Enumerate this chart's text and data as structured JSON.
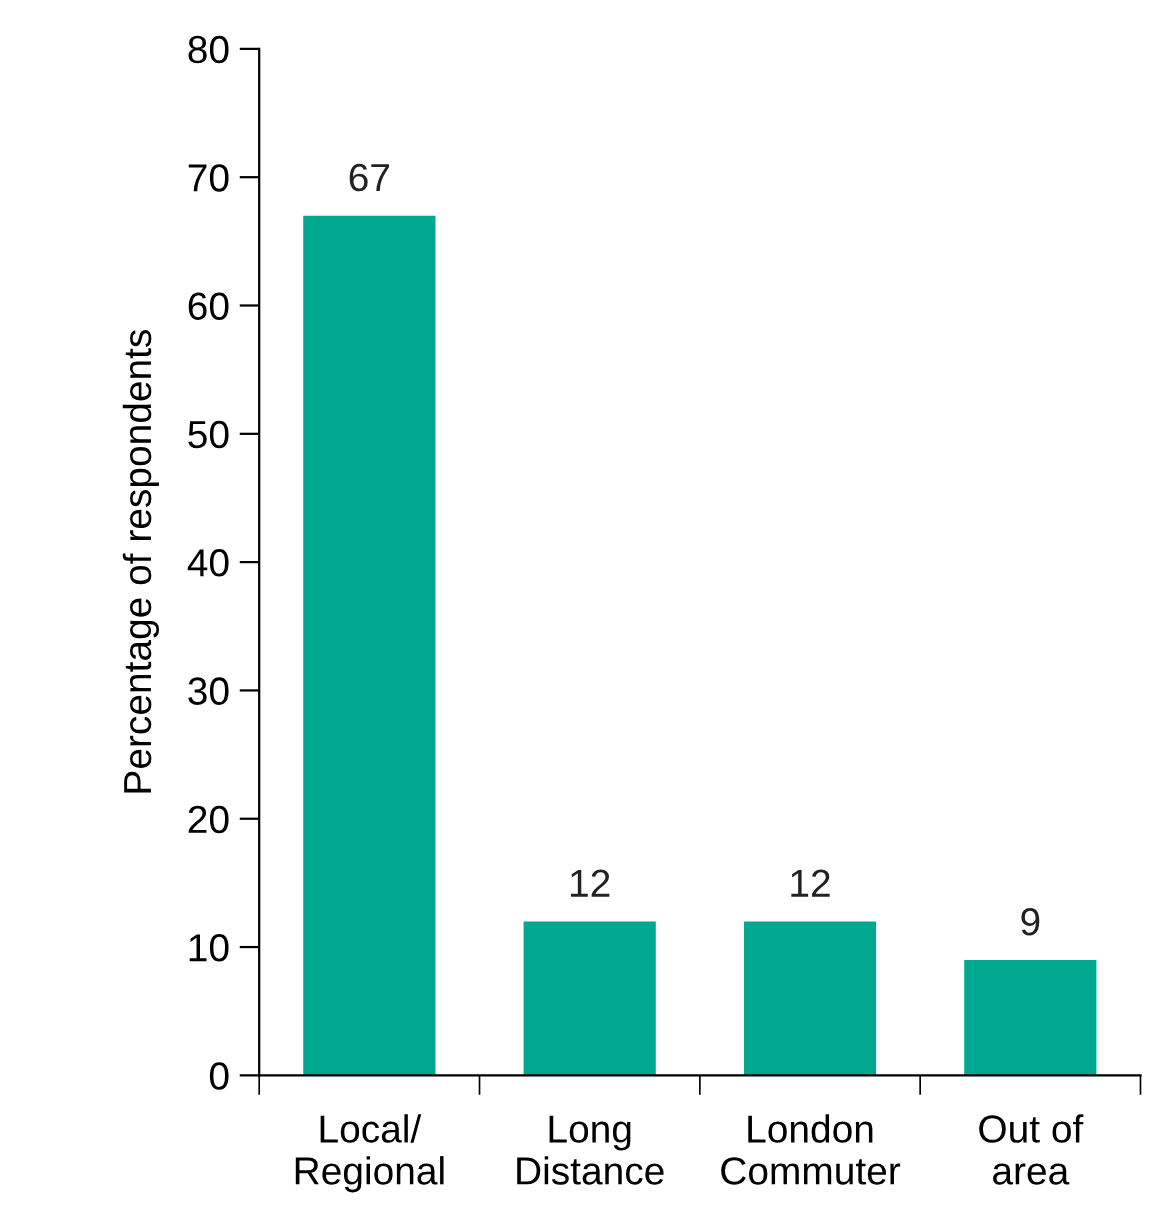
{
  "chart_data": {
    "type": "bar",
    "ylabel": "Percentage of respondents",
    "categories": [
      "Local/\nRegional",
      "Long\nDistance",
      "London\nCommuter",
      "Out of\narea"
    ],
    "values": [
      67,
      12,
      12,
      9
    ],
    "color": "#00a88f",
    "ylim": [
      0,
      80
    ],
    "yticks": [
      0,
      10,
      20,
      30,
      40,
      50,
      60,
      70,
      80
    ],
    "grid": false,
    "data_labels": true
  }
}
